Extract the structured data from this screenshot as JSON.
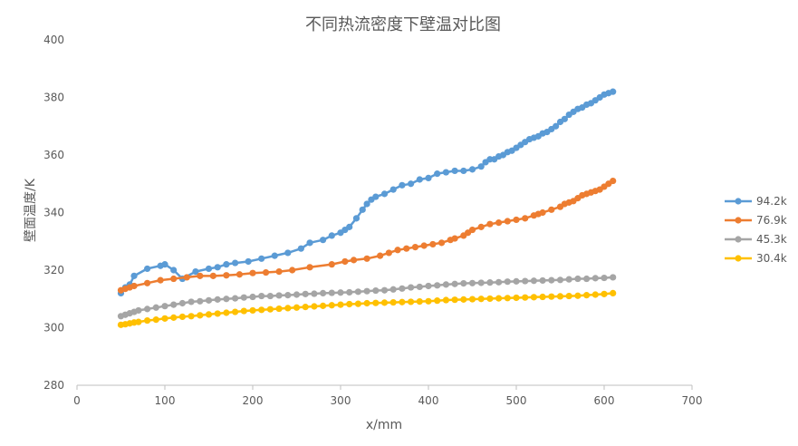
{
  "chart_data": {
    "type": "line",
    "title": "不同热流密度下壁温对比图",
    "xlabel": "x/mm",
    "ylabel": "壁面温度/K",
    "xlim": [
      0,
      700
    ],
    "ylim": [
      280,
      400
    ],
    "xticks": [
      0,
      100,
      200,
      300,
      400,
      500,
      600,
      700
    ],
    "yticks": [
      280,
      300,
      320,
      340,
      360,
      380,
      400
    ],
    "grid": false,
    "legend_position": "right",
    "series": [
      {
        "name": "94.2k",
        "color": "#5B9BD5",
        "x": [
          50,
          55,
          60,
          65,
          80,
          95,
          100,
          110,
          120,
          135,
          150,
          160,
          170,
          180,
          195,
          210,
          225,
          240,
          255,
          265,
          280,
          290,
          300,
          305,
          310,
          318,
          325,
          330,
          335,
          340,
          350,
          360,
          370,
          380,
          390,
          400,
          410,
          420,
          430,
          440,
          450,
          460,
          465,
          470,
          475,
          480,
          485,
          490,
          495,
          500,
          505,
          510,
          515,
          520,
          525,
          530,
          535,
          540,
          545,
          550,
          555,
          560,
          565,
          570,
          575,
          580,
          585,
          590,
          595,
          600,
          605,
          610
        ],
        "y": [
          312,
          314,
          315,
          318,
          320.5,
          321.5,
          322,
          320,
          317,
          319.5,
          320.5,
          321,
          322,
          322.5,
          323,
          324,
          325,
          326,
          327.5,
          329.5,
          330.5,
          332,
          333,
          334,
          335,
          338,
          341,
          343,
          344.5,
          345.5,
          346.5,
          348,
          349.5,
          350,
          351.5,
          352,
          353.5,
          354,
          354.5,
          354.5,
          355,
          356,
          357.5,
          358.5,
          358.5,
          359.5,
          360,
          361,
          361.5,
          362.5,
          363.5,
          364.5,
          365.5,
          366,
          366.5,
          367.5,
          368,
          369,
          370,
          371.5,
          372.5,
          374,
          375,
          376,
          376.5,
          377.5,
          378,
          379,
          380,
          381,
          381.5,
          382
        ]
      },
      {
        "name": "76.9k",
        "color": "#ED7D31",
        "x": [
          50,
          55,
          60,
          65,
          80,
          95,
          110,
          125,
          140,
          155,
          170,
          185,
          200,
          215,
          230,
          245,
          265,
          290,
          305,
          315,
          330,
          345,
          355,
          365,
          375,
          385,
          395,
          405,
          415,
          425,
          430,
          440,
          445,
          450,
          460,
          470,
          480,
          490,
          500,
          510,
          520,
          525,
          530,
          540,
          550,
          555,
          560,
          565,
          570,
          575,
          580,
          585,
          590,
          595,
          600,
          605,
          610
        ],
        "y": [
          313,
          313.5,
          314,
          314.5,
          315.5,
          316.5,
          317,
          317.5,
          318,
          318,
          318.2,
          318.5,
          319,
          319.2,
          319.5,
          320,
          321,
          322,
          323,
          323.5,
          324,
          325,
          326,
          327,
          327.5,
          328,
          328.5,
          329,
          329.5,
          330.5,
          331,
          332,
          333,
          334,
          335,
          336,
          336.5,
          337,
          337.5,
          338,
          339,
          339.5,
          340,
          341,
          342,
          343,
          343.5,
          344,
          345,
          346,
          346.5,
          347,
          347.5,
          348,
          349,
          350,
          351
        ]
      },
      {
        "name": "45.3k",
        "color": "#A5A5A5",
        "x": [
          50,
          55,
          60,
          65,
          70,
          80,
          90,
          100,
          110,
          120,
          130,
          140,
          150,
          160,
          170,
          180,
          190,
          200,
          210,
          220,
          230,
          240,
          250,
          260,
          270,
          280,
          290,
          300,
          310,
          320,
          330,
          340,
          350,
          360,
          370,
          380,
          390,
          400,
          410,
          420,
          430,
          440,
          450,
          460,
          470,
          480,
          490,
          500,
          510,
          520,
          530,
          540,
          550,
          560,
          570,
          580,
          590,
          600,
          610
        ],
        "y": [
          304,
          304.5,
          305,
          305.5,
          306,
          306.5,
          307,
          307.5,
          308,
          308.5,
          309,
          309.2,
          309.5,
          309.8,
          310,
          310.2,
          310.5,
          310.7,
          311,
          311,
          311.2,
          311.3,
          311.5,
          311.7,
          311.8,
          312,
          312.1,
          312.2,
          312.3,
          312.5,
          312.7,
          312.9,
          313,
          313.3,
          313.6,
          314,
          314.2,
          314.5,
          314.7,
          315,
          315.2,
          315.4,
          315.5,
          315.6,
          315.7,
          315.8,
          316,
          316.1,
          316.2,
          316.3,
          316.4,
          316.5,
          316.6,
          316.8,
          317,
          317,
          317.2,
          317.3,
          317.5
        ]
      },
      {
        "name": "30.4k",
        "color": "#FFC000",
        "x": [
          50,
          55,
          60,
          65,
          70,
          80,
          90,
          100,
          110,
          120,
          130,
          140,
          150,
          160,
          170,
          180,
          190,
          200,
          210,
          220,
          230,
          240,
          250,
          260,
          270,
          280,
          290,
          300,
          310,
          320,
          330,
          340,
          350,
          360,
          370,
          380,
          390,
          400,
          410,
          420,
          430,
          440,
          450,
          460,
          470,
          480,
          490,
          500,
          510,
          520,
          530,
          540,
          550,
          560,
          570,
          580,
          590,
          600,
          610
        ],
        "y": [
          301,
          301.2,
          301.5,
          301.8,
          302,
          302.5,
          302.8,
          303.2,
          303.5,
          303.8,
          304,
          304.3,
          304.6,
          304.9,
          305.2,
          305.5,
          305.8,
          306,
          306.2,
          306.4,
          306.6,
          306.8,
          307,
          307.2,
          307.4,
          307.6,
          307.8,
          308,
          308.2,
          308.3,
          308.5,
          308.6,
          308.7,
          308.8,
          308.9,
          309,
          309.1,
          309.2,
          309.4,
          309.6,
          309.7,
          309.8,
          309.9,
          310,
          310.1,
          310.2,
          310.3,
          310.4,
          310.5,
          310.6,
          310.7,
          310.8,
          310.9,
          311,
          311.1,
          311.3,
          311.5,
          311.7,
          312
        ]
      }
    ]
  }
}
